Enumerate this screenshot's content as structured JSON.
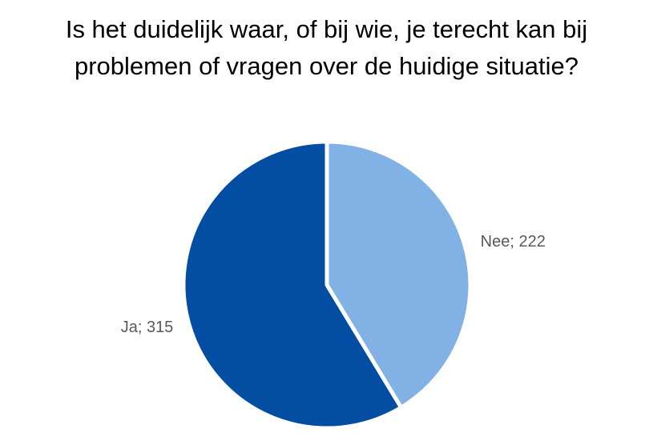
{
  "chart_data": {
    "type": "pie",
    "title": "Is het duidelijk waar, of bij wie, je terecht kan bij problemen of vragen over de huidige situatie?",
    "values": [
      222,
      315
    ],
    "value_labels": [
      "Nee; 222",
      "Ja; 315"
    ],
    "colors": [
      "#82b1e5",
      "#034ea2"
    ]
  }
}
